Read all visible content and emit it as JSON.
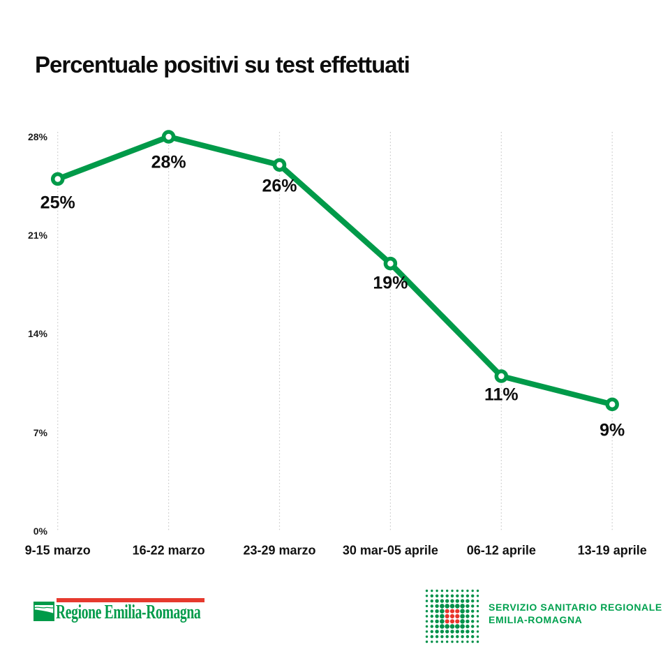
{
  "title": "Percentuale positivi su test effettuati",
  "chart_data": {
    "type": "line",
    "title": "Percentuale positivi su test effettuati",
    "categories": [
      "9-15 marzo",
      "16-22 marzo",
      "23-29 marzo",
      "30 mar-05 aprile",
      "06-12 aprile",
      "13-19 aprile"
    ],
    "values": [
      25,
      28,
      26,
      19,
      11,
      9
    ],
    "point_labels": [
      "25%",
      "28%",
      "26%",
      "19%",
      "11%",
      "9%"
    ],
    "y_ticks": [
      "28%",
      "21%",
      "14%",
      "7%",
      "0%"
    ],
    "y_tick_values": [
      28,
      21,
      14,
      7,
      0
    ],
    "ylim": [
      0,
      28
    ],
    "xlabel": "",
    "ylabel": "",
    "legend": "none",
    "grid": "vertical-dotted",
    "line_color": "#009a49",
    "marker_fill": "#ffffff",
    "marker_stroke": "#009a49",
    "gridline_color": "#c6c6c6",
    "label_color": "#0d0d0d"
  },
  "footer": {
    "regione_logo": {
      "text": "Regione Emilia-Romagna",
      "green": "#009a49",
      "red": "#e63a2e"
    },
    "ssr_logo": {
      "line1": "SERVIZIO SANITARIO REGIONALE",
      "line2": "EMILIA-ROMAGNA",
      "green": "#00a14f",
      "dot_green": "#00914a",
      "dot_red": "#e8352c"
    }
  }
}
